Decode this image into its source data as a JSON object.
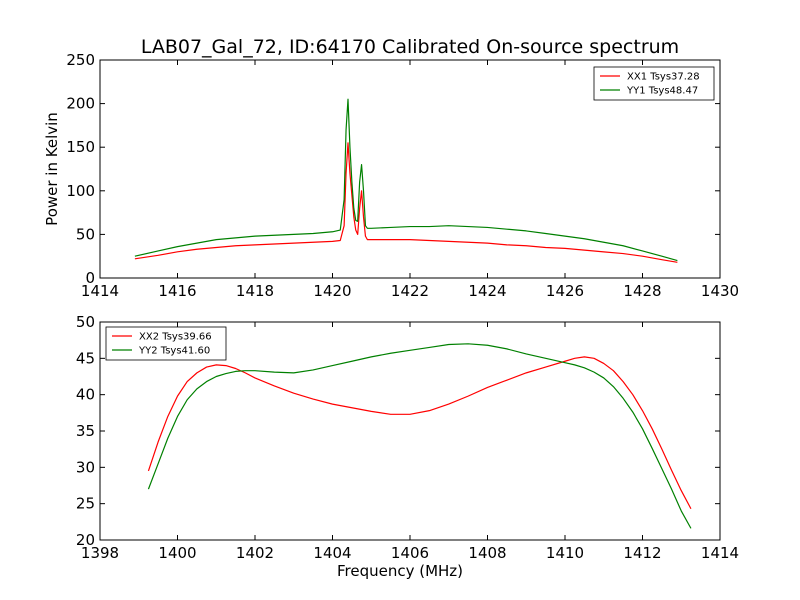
{
  "title": "LAB07_Gal_72, ID:64170 Calibrated On-source spectrum",
  "chart_data": [
    {
      "type": "line",
      "xlabel": "",
      "ylabel": "Power in Kelvin",
      "xlim": [
        1414,
        1430
      ],
      "ylim": [
        0,
        250
      ],
      "xticks": [
        1414,
        1416,
        1418,
        1420,
        1422,
        1424,
        1426,
        1428,
        1430
      ],
      "yticks": [
        0,
        50,
        100,
        150,
        200,
        250
      ],
      "legend_position": "top-right",
      "series": [
        {
          "name": "XX1 Tsys37.28",
          "color": "#ff0000",
          "x": [
            1414.9,
            1415.5,
            1416.0,
            1416.5,
            1417.0,
            1417.5,
            1418.0,
            1418.5,
            1419.0,
            1419.5,
            1420.0,
            1420.2,
            1420.3,
            1420.35,
            1420.4,
            1420.45,
            1420.5,
            1420.55,
            1420.6,
            1420.65,
            1420.7,
            1420.75,
            1420.8,
            1420.85,
            1420.9,
            1421.0,
            1421.5,
            1422.0,
            1422.5,
            1423.0,
            1423.5,
            1424.0,
            1424.5,
            1425.0,
            1425.5,
            1426.0,
            1426.5,
            1427.0,
            1427.5,
            1428.0,
            1428.5,
            1428.9
          ],
          "y": [
            22,
            26,
            30,
            33,
            35,
            37,
            38,
            39,
            40,
            41,
            42,
            43,
            60,
            120,
            155,
            120,
            95,
            70,
            55,
            50,
            80,
            100,
            70,
            48,
            44,
            44,
            44,
            44,
            43,
            42,
            41,
            40,
            38,
            37,
            35,
            34,
            32,
            30,
            28,
            25,
            21,
            18
          ]
        },
        {
          "name": "YY1 Tsys48.47",
          "color": "#008000",
          "x": [
            1414.9,
            1415.5,
            1416.0,
            1416.5,
            1417.0,
            1417.5,
            1418.0,
            1418.5,
            1419.0,
            1419.5,
            1420.0,
            1420.2,
            1420.3,
            1420.35,
            1420.4,
            1420.45,
            1420.5,
            1420.55,
            1420.6,
            1420.65,
            1420.7,
            1420.75,
            1420.8,
            1420.85,
            1420.9,
            1421.0,
            1421.5,
            1422.0,
            1422.5,
            1423.0,
            1423.5,
            1424.0,
            1424.5,
            1425.0,
            1425.5,
            1426.0,
            1426.5,
            1427.0,
            1427.5,
            1428.0,
            1428.5,
            1428.9
          ],
          "y": [
            25,
            31,
            36,
            40,
            44,
            46,
            48,
            49,
            50,
            51,
            53,
            55,
            90,
            170,
            205,
            150,
            110,
            80,
            66,
            65,
            110,
            130,
            100,
            60,
            57,
            57,
            58,
            59,
            59,
            60,
            59,
            58,
            56,
            54,
            51,
            48,
            45,
            41,
            37,
            31,
            25,
            20
          ]
        }
      ]
    },
    {
      "type": "line",
      "xlabel": "Frequency (MHz)",
      "ylabel": "",
      "xlim": [
        1398,
        1414
      ],
      "ylim": [
        20,
        50
      ],
      "xticks": [
        1398,
        1400,
        1402,
        1404,
        1406,
        1408,
        1410,
        1412,
        1414
      ],
      "yticks": [
        20,
        25,
        30,
        35,
        40,
        45,
        50
      ],
      "legend_position": "top-left",
      "series": [
        {
          "name": "XX2 Tsys39.66",
          "color": "#ff0000",
          "x": [
            1399.25,
            1399.5,
            1399.75,
            1400.0,
            1400.25,
            1400.5,
            1400.75,
            1401.0,
            1401.25,
            1401.5,
            1401.75,
            1402.0,
            1402.5,
            1403.0,
            1403.5,
            1404.0,
            1404.5,
            1405.0,
            1405.5,
            1406.0,
            1406.5,
            1407.0,
            1407.5,
            1408.0,
            1408.5,
            1409.0,
            1409.5,
            1410.0,
            1410.25,
            1410.5,
            1410.75,
            1411.0,
            1411.25,
            1411.5,
            1411.75,
            1412.0,
            1412.25,
            1412.5,
            1412.75,
            1413.0,
            1413.25
          ],
          "y": [
            29.5,
            33.5,
            37,
            39.8,
            41.8,
            43,
            43.8,
            44.1,
            44,
            43.6,
            43,
            42.3,
            41.2,
            40.2,
            39.4,
            38.7,
            38.2,
            37.7,
            37.3,
            37.3,
            37.8,
            38.7,
            39.8,
            41,
            42,
            43,
            43.8,
            44.6,
            45,
            45.2,
            45,
            44.3,
            43.3,
            41.8,
            40,
            37.8,
            35.3,
            32.5,
            29.6,
            26.8,
            24.3
          ]
        },
        {
          "name": "YY2 Tsys41.60",
          "color": "#008000",
          "x": [
            1399.25,
            1399.5,
            1399.75,
            1400.0,
            1400.25,
            1400.5,
            1400.75,
            1401.0,
            1401.25,
            1401.5,
            1401.75,
            1402.0,
            1402.5,
            1403.0,
            1403.5,
            1404.0,
            1404.5,
            1405.0,
            1405.5,
            1406.0,
            1406.5,
            1407.0,
            1407.5,
            1408.0,
            1408.5,
            1409.0,
            1409.5,
            1410.0,
            1410.25,
            1410.5,
            1410.75,
            1411.0,
            1411.25,
            1411.5,
            1411.75,
            1412.0,
            1412.25,
            1412.5,
            1412.75,
            1413.0,
            1413.25
          ],
          "y": [
            27,
            30.5,
            34,
            37,
            39.3,
            40.8,
            41.8,
            42.5,
            42.9,
            43.2,
            43.3,
            43.3,
            43.1,
            43,
            43.4,
            44,
            44.6,
            45.2,
            45.7,
            46.1,
            46.5,
            46.9,
            47,
            46.8,
            46.3,
            45.6,
            45,
            44.4,
            44.1,
            43.7,
            43.1,
            42.3,
            41.1,
            39.5,
            37.6,
            35.3,
            32.6,
            29.8,
            27,
            24,
            21.6
          ]
        }
      ]
    }
  ]
}
